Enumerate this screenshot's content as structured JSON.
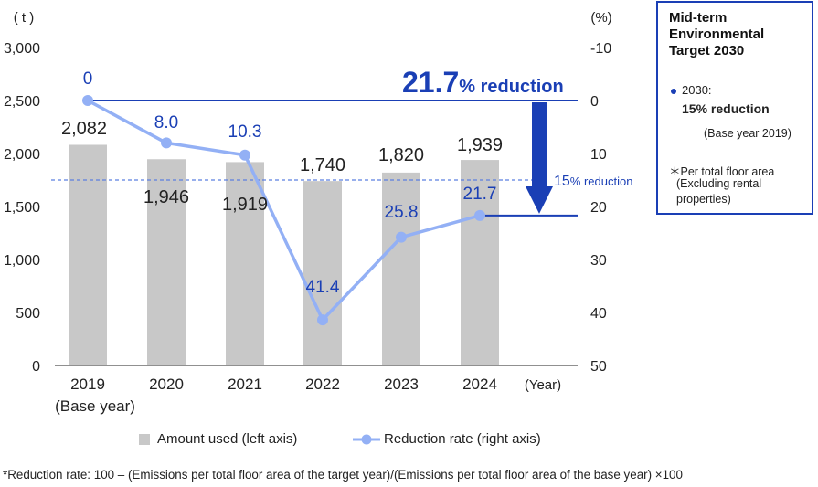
{
  "chart_data": {
    "type": "bar+line",
    "categories": [
      "2019",
      "2020",
      "2021",
      "2022",
      "2023",
      "2024"
    ],
    "base_year_label": "(Base year)",
    "x_unit_label": "(Year)",
    "left_axis": {
      "unit": "( t )",
      "ticks": [
        "3,000",
        "2,500",
        "2,000",
        "1,500",
        "1,000",
        "500",
        "0"
      ],
      "ylim": [
        0,
        3000
      ]
    },
    "right_axis": {
      "unit": "(%)",
      "ticks": [
        "-10",
        "0",
        "10",
        "20",
        "30",
        "40",
        "50"
      ],
      "ylim": [
        -10,
        50
      ],
      "inverted": true
    },
    "series": [
      {
        "name": "Amount used (left axis)",
        "type": "bar",
        "axis": "left",
        "values": [
          2082,
          1946,
          1919,
          1740,
          1820,
          1939
        ],
        "labels": [
          "2,082",
          "1,946",
          "1,919",
          "1,740",
          "1,820",
          "1,939"
        ]
      },
      {
        "name": "Reduction rate (right axis)",
        "type": "line",
        "axis": "right",
        "values": [
          0,
          8.0,
          10.3,
          41.4,
          25.8,
          21.7
        ],
        "labels": [
          "0",
          "8.0",
          "10.3",
          "41.4",
          "25.8",
          "21.7"
        ]
      }
    ],
    "target_line": {
      "value": 15,
      "label_num": "15",
      "label_text": "% reduction"
    },
    "headline": {
      "number": "21.7",
      "text": "% reduction"
    },
    "legend": {
      "placement": "bottom"
    },
    "colors": {
      "bar": "#c8c8c8",
      "line": "#93b0f5",
      "marker": "#93b0f5",
      "accent": "#1a3fb5",
      "label_blue": "#1a3fb5"
    }
  },
  "sidebox": {
    "title": "Mid-term Environmental Target 2030",
    "bullet_year": "2030:",
    "bullet_value": "15% reduction",
    "bullet_base": "(Base year 2019)",
    "note_line1": "＊Per total floor area",
    "note_line2": "(Excluding rental",
    "note_line3": "properties)"
  },
  "footnote": "*Reduction rate: 100 – (Emissions per total floor area of the target year)/(Emissions per total floor area of the base year) ×100"
}
